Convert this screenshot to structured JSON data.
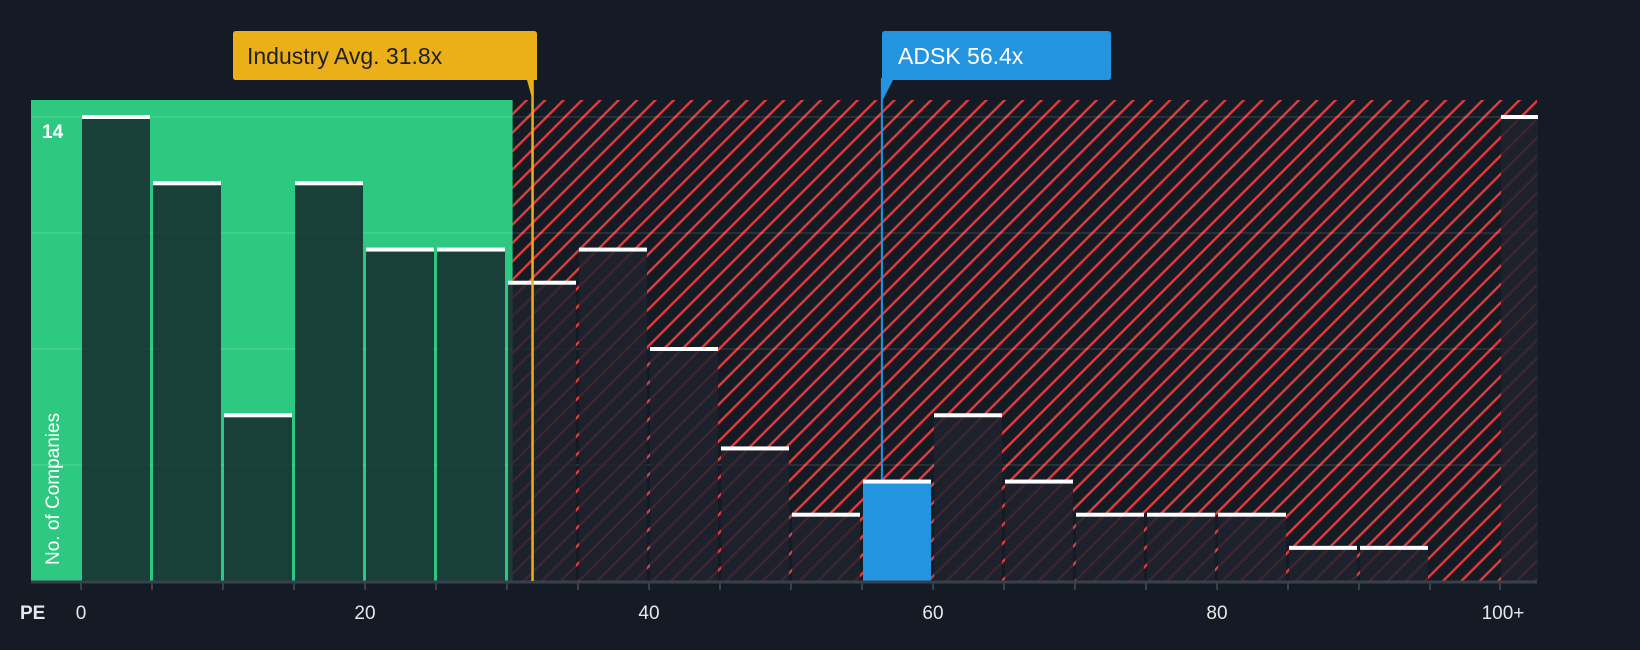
{
  "chart_data": {
    "type": "bar",
    "title": "",
    "xlabel": "PE",
    "ylabel": "No. of Companies",
    "bin_width": 5,
    "bins": [
      {
        "from": 0,
        "to": 5,
        "value": 14
      },
      {
        "from": 5,
        "to": 10,
        "value": 12
      },
      {
        "from": 10,
        "to": 15,
        "value": 5
      },
      {
        "from": 15,
        "to": 20,
        "value": 12
      },
      {
        "from": 20,
        "to": 25,
        "value": 10
      },
      {
        "from": 25,
        "to": 30,
        "value": 10
      },
      {
        "from": 30,
        "to": 35,
        "value": 9
      },
      {
        "from": 35,
        "to": 40,
        "value": 10
      },
      {
        "from": 40,
        "to": 45,
        "value": 7
      },
      {
        "from": 45,
        "to": 50,
        "value": 4
      },
      {
        "from": 50,
        "to": 55,
        "value": 2
      },
      {
        "from": 55,
        "to": 60,
        "value": 3
      },
      {
        "from": 60,
        "to": 65,
        "value": 5
      },
      {
        "from": 65,
        "to": 70,
        "value": 3
      },
      {
        "from": 70,
        "to": 75,
        "value": 2
      },
      {
        "from": 75,
        "to": 80,
        "value": 2
      },
      {
        "from": 80,
        "to": 85,
        "value": 2
      },
      {
        "from": 85,
        "to": 90,
        "value": 1
      },
      {
        "from": 90,
        "to": 95,
        "value": 1
      },
      {
        "from": 95,
        "to": 100,
        "value": 0
      },
      {
        "from": 100,
        "to": 105,
        "value": 14,
        "label": "100+"
      }
    ],
    "x_ticks": [
      "0",
      "20",
      "40",
      "60",
      "80",
      "100+"
    ],
    "y_ticks": [
      "14"
    ],
    "ylim": [
      0,
      14
    ],
    "grid": true,
    "industry_avg": {
      "label": "Industry Avg. 31.8x",
      "value": 31.8
    },
    "company": {
      "label": "ADSK 56.4x",
      "value": 56.4,
      "bin_from": 55
    },
    "fair_range_max": 30.4,
    "colors": {
      "background": "#151b24",
      "green": "#2ec980",
      "red": "#e03c3c",
      "gold": "#ebb018",
      "blue": "#2394e0"
    }
  }
}
